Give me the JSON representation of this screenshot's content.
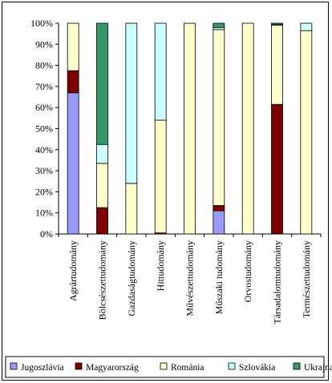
{
  "chart_data": {
    "type": "bar",
    "stacked": "percent",
    "categories": [
      "Agrártudomány",
      "Bölcsészettudomány",
      "Gazdaságtudomány",
      "Hittudomány",
      "Művészettudomány",
      "Műszaki tudomány",
      "Orvostudomány",
      "Társadalomtudomány",
      "Természettudomány"
    ],
    "series": [
      {
        "name": "Jugoszlávia",
        "color": "#9999FF",
        "values": [
          67,
          0,
          0,
          0,
          0,
          11,
          0,
          0,
          0
        ]
      },
      {
        "name": "Magyarország",
        "color": "#800000",
        "values": [
          10.5,
          12.5,
          0,
          0.5,
          0,
          2.5,
          0,
          61.5,
          0
        ]
      },
      {
        "name": "Románia",
        "color": "#FFFFCC",
        "values": [
          22.5,
          21,
          24,
          53.5,
          100,
          83.5,
          100,
          37.5,
          96.5
        ]
      },
      {
        "name": "Szlovákia",
        "color": "#CCFFFF",
        "values": [
          0,
          9,
          76,
          46,
          0,
          1,
          0,
          0.5,
          3.5
        ]
      },
      {
        "name": "Ukrajna",
        "color": "#339966",
        "values": [
          0,
          57.5,
          0,
          0,
          0,
          2,
          0,
          0.5,
          0
        ]
      }
    ],
    "yticks": [
      "0%",
      "10%",
      "20%",
      "30%",
      "40%",
      "50%",
      "60%",
      "70%",
      "80%",
      "90%",
      "100%"
    ],
    "ylim": [
      0,
      100
    ],
    "grid": false,
    "legend_position": "bottom"
  }
}
